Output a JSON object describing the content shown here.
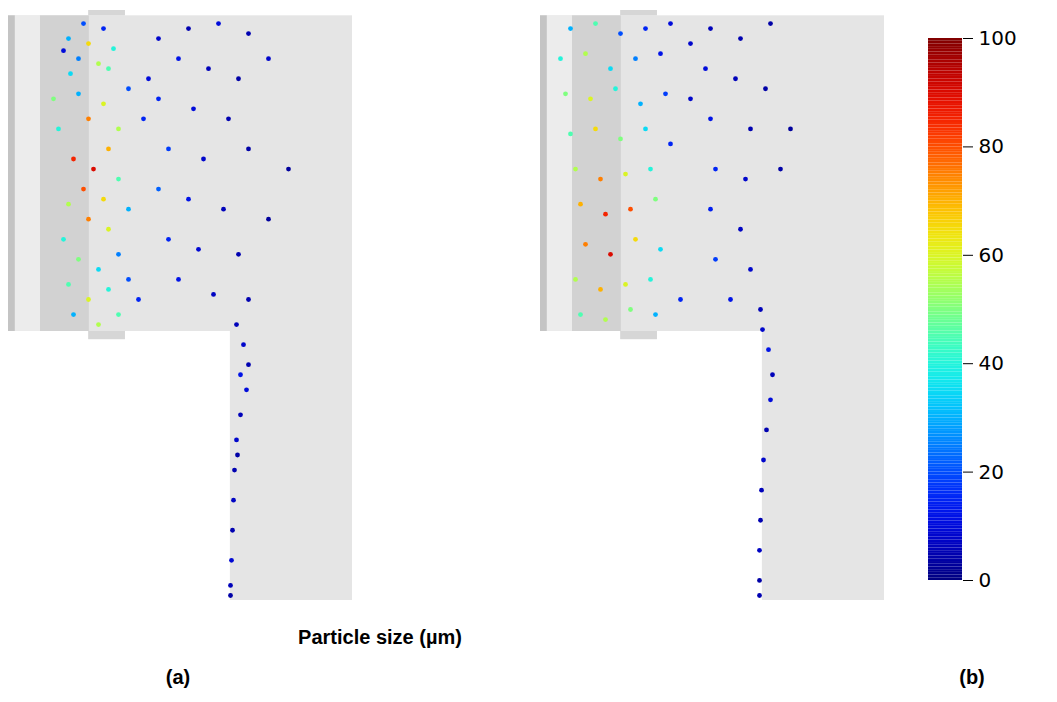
{
  "chart_data": {
    "type": "scatter",
    "tick_labels": false,
    "panels": [
      {
        "label": "(a)",
        "xlim": [
          0,
          344
        ],
        "ylim": [
          0,
          588
        ],
        "particles": [
          [
            60,
            560,
            30
          ],
          [
            75,
            575,
            20
          ],
          [
            95,
            570,
            15
          ],
          [
            105,
            550,
            40
          ],
          [
            90,
            535,
            55
          ],
          [
            70,
            540,
            25
          ],
          [
            55,
            548,
            10
          ],
          [
            80,
            555,
            65
          ],
          [
            100,
            530,
            45
          ],
          [
            62,
            525,
            35
          ],
          [
            45,
            500,
            50
          ],
          [
            70,
            505,
            30
          ],
          [
            95,
            495,
            60
          ],
          [
            120,
            510,
            20
          ],
          [
            140,
            520,
            10
          ],
          [
            50,
            470,
            40
          ],
          [
            80,
            480,
            75
          ],
          [
            110,
            470,
            55
          ],
          [
            135,
            480,
            15
          ],
          [
            65,
            440,
            85
          ],
          [
            85,
            430,
            90
          ],
          [
            100,
            450,
            70
          ],
          [
            75,
            410,
            80
          ],
          [
            95,
            400,
            65
          ],
          [
            60,
            395,
            55
          ],
          [
            110,
            420,
            45
          ],
          [
            80,
            380,
            75
          ],
          [
            100,
            370,
            60
          ],
          [
            55,
            360,
            40
          ],
          [
            120,
            390,
            30
          ],
          [
            70,
            340,
            50
          ],
          [
            90,
            330,
            35
          ],
          [
            110,
            345,
            25
          ],
          [
            60,
            315,
            45
          ],
          [
            80,
            300,
            60
          ],
          [
            100,
            310,
            40
          ],
          [
            120,
            320,
            20
          ],
          [
            65,
            285,
            30
          ],
          [
            90,
            275,
            55
          ],
          [
            110,
            285,
            45
          ],
          [
            130,
            300,
            15
          ],
          [
            150,
            560,
            8
          ],
          [
            180,
            570,
            5
          ],
          [
            210,
            575,
            10
          ],
          [
            240,
            565,
            5
          ],
          [
            170,
            540,
            12
          ],
          [
            200,
            530,
            6
          ],
          [
            230,
            520,
            4
          ],
          [
            260,
            540,
            8
          ],
          [
            150,
            500,
            15
          ],
          [
            185,
            490,
            10
          ],
          [
            220,
            480,
            5
          ],
          [
            160,
            450,
            18
          ],
          [
            195,
            440,
            8
          ],
          [
            240,
            450,
            4
          ],
          [
            150,
            410,
            22
          ],
          [
            180,
            400,
            12
          ],
          [
            215,
            390,
            6
          ],
          [
            160,
            360,
            15
          ],
          [
            190,
            350,
            9
          ],
          [
            230,
            345,
            5
          ],
          [
            170,
            320,
            12
          ],
          [
            205,
            305,
            7
          ],
          [
            240,
            300,
            5
          ],
          [
            260,
            380,
            3
          ],
          [
            280,
            430,
            3
          ],
          [
            228,
            275,
            6
          ],
          [
            235,
            255,
            8
          ],
          [
            240,
            235,
            5
          ],
          [
            238,
            210,
            10
          ],
          [
            232,
            185,
            6
          ],
          [
            228,
            160,
            8
          ],
          [
            226,
            130,
            5
          ],
          [
            225,
            100,
            7
          ],
          [
            224,
            70,
            5
          ],
          [
            223,
            40,
            9
          ],
          [
            222,
            15,
            6
          ],
          [
            222,
            5,
            4
          ],
          [
            232,
            225,
            12
          ],
          [
            229,
            145,
            4
          ]
        ]
      },
      {
        "label": "(b)",
        "xlim": [
          0,
          344
        ],
        "ylim": [
          0,
          588
        ],
        "particles": [
          [
            30,
            570,
            30
          ],
          [
            55,
            575,
            45
          ],
          [
            80,
            565,
            20
          ],
          [
            105,
            570,
            15
          ],
          [
            130,
            575,
            10
          ],
          [
            20,
            540,
            40
          ],
          [
            45,
            545,
            55
          ],
          [
            70,
            530,
            35
          ],
          [
            95,
            540,
            25
          ],
          [
            120,
            545,
            12
          ],
          [
            150,
            555,
            8
          ],
          [
            25,
            505,
            50
          ],
          [
            50,
            500,
            60
          ],
          [
            75,
            510,
            40
          ],
          [
            100,
            495,
            30
          ],
          [
            125,
            505,
            18
          ],
          [
            150,
            500,
            8
          ],
          [
            30,
            465,
            45
          ],
          [
            55,
            470,
            65
          ],
          [
            80,
            460,
            50
          ],
          [
            105,
            470,
            35
          ],
          [
            130,
            455,
            15
          ],
          [
            35,
            430,
            55
          ],
          [
            60,
            420,
            75
          ],
          [
            85,
            425,
            60
          ],
          [
            110,
            430,
            40
          ],
          [
            40,
            395,
            70
          ],
          [
            65,
            385,
            85
          ],
          [
            90,
            390,
            80
          ],
          [
            115,
            400,
            50
          ],
          [
            45,
            355,
            75
          ],
          [
            70,
            345,
            90
          ],
          [
            95,
            360,
            65
          ],
          [
            120,
            350,
            35
          ],
          [
            35,
            320,
            55
          ],
          [
            60,
            310,
            70
          ],
          [
            85,
            315,
            60
          ],
          [
            110,
            320,
            40
          ],
          [
            40,
            285,
            45
          ],
          [
            65,
            280,
            55
          ],
          [
            90,
            290,
            50
          ],
          [
            115,
            285,
            30
          ],
          [
            140,
            300,
            15
          ],
          [
            170,
            570,
            6
          ],
          [
            200,
            560,
            5
          ],
          [
            230,
            575,
            4
          ],
          [
            165,
            530,
            10
          ],
          [
            195,
            520,
            6
          ],
          [
            225,
            510,
            4
          ],
          [
            170,
            480,
            12
          ],
          [
            210,
            470,
            5
          ],
          [
            175,
            430,
            15
          ],
          [
            205,
            420,
            8
          ],
          [
            240,
            430,
            4
          ],
          [
            170,
            390,
            14
          ],
          [
            200,
            370,
            7
          ],
          [
            175,
            340,
            18
          ],
          [
            210,
            330,
            8
          ],
          [
            190,
            300,
            12
          ],
          [
            220,
            290,
            6
          ],
          [
            250,
            470,
            3
          ],
          [
            222,
            270,
            8
          ],
          [
            228,
            250,
            12
          ],
          [
            232,
            225,
            6
          ],
          [
            230,
            200,
            10
          ],
          [
            226,
            170,
            5
          ],
          [
            223,
            140,
            8
          ],
          [
            221,
            110,
            6
          ],
          [
            220,
            80,
            5
          ],
          [
            219,
            50,
            7
          ],
          [
            219,
            20,
            4
          ],
          [
            219,
            5,
            5
          ]
        ]
      }
    ],
    "colorbar": {
      "label": "Particle size (µm)",
      "range": [
        0,
        100
      ],
      "ticks": [
        0,
        20,
        40,
        60,
        80,
        100
      ]
    }
  }
}
